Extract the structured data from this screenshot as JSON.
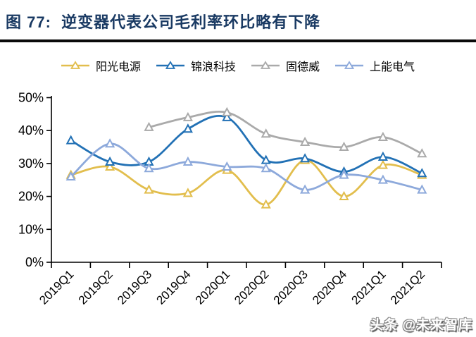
{
  "header": {
    "title": "图 77:  逆变器代表公司毛利率环比略有下降",
    "title_color": "#1A3A63"
  },
  "footer": {
    "watermark": "头条 @未来智库"
  },
  "chart_data": {
    "type": "line",
    "title": "逆变器代表公司毛利率环比略有下降",
    "categories": [
      "2019Q1",
      "2019Q2",
      "2019Q3",
      "2019Q4",
      "2020Q1",
      "2020Q2",
      "2020Q3",
      "2020Q4",
      "2021Q1",
      "2021Q2"
    ],
    "series": [
      {
        "name": "阳光电源",
        "color": "#E2BE4D",
        "values": [
          26.5,
          29,
          22,
          21,
          28,
          17.5,
          31,
          20,
          29.5,
          26.5
        ]
      },
      {
        "name": "锦浪科技",
        "color": "#2271B5",
        "values": [
          37,
          30.5,
          30.5,
          40.5,
          44,
          31,
          31.5,
          27.5,
          32,
          27
        ]
      },
      {
        "name": "固德威",
        "color": "#AAAAAA",
        "values": [
          null,
          null,
          41,
          44,
          45.5,
          39,
          36.5,
          35,
          38,
          33
        ]
      },
      {
        "name": "上能电气",
        "color": "#8DA9DB",
        "values": [
          26,
          36,
          28.5,
          30.5,
          29,
          28.5,
          22,
          26.5,
          25,
          22
        ]
      }
    ],
    "y_axis": {
      "min": 0,
      "max": 50,
      "step": 10,
      "labels": [
        "0%",
        "10%",
        "20%",
        "30%",
        "40%",
        "50%"
      ]
    },
    "x_label_rotation": -45,
    "grid": false,
    "legend_position": "top",
    "marker": "hollow-triangle",
    "line_style": "smooth",
    "axis_color": "#000000"
  }
}
